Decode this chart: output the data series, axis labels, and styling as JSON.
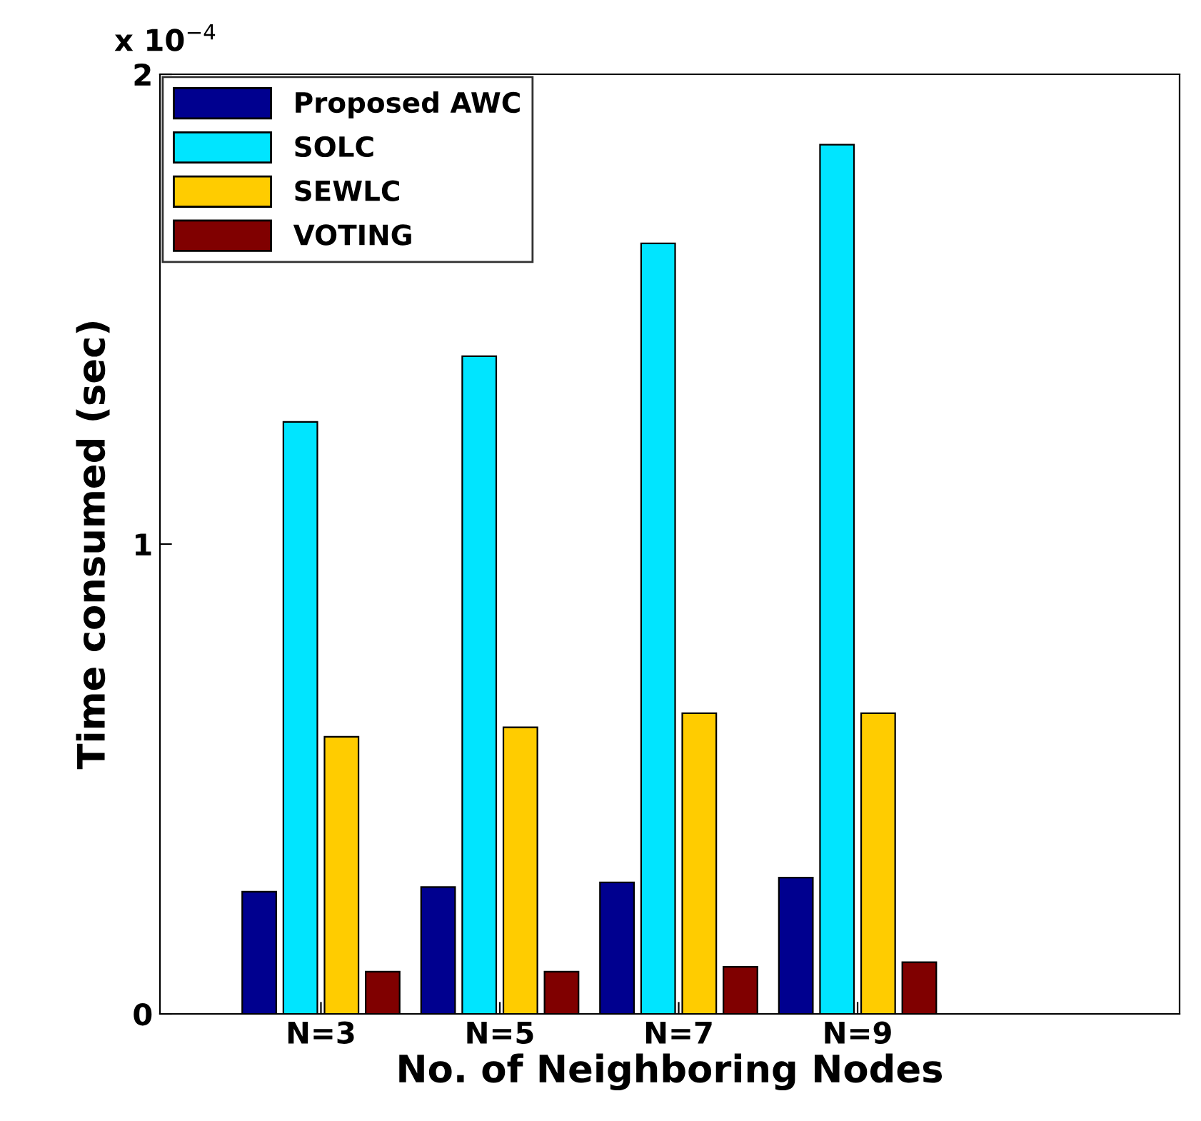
{
  "chart_data": {
    "type": "bar",
    "xlabel": "No. of Neighboring Nodes",
    "ylabel": "Time consumed (sec)",
    "categories": [
      "N=3",
      "N=5",
      "N=7",
      "N=9"
    ],
    "series": [
      {
        "name": "Proposed AWC",
        "color": "#00008f",
        "values": [
          0.26,
          0.27,
          0.28,
          0.29
        ]
      },
      {
        "name": "SOLC",
        "color": "#00e5ff",
        "values": [
          1.26,
          1.4,
          1.64,
          1.85
        ]
      },
      {
        "name": "SEWLC",
        "color": "#ffcc00",
        "values": [
          0.59,
          0.61,
          0.64,
          0.64
        ]
      },
      {
        "name": "VOTING",
        "color": "#800000",
        "values": [
          0.09,
          0.09,
          0.1,
          0.11
        ]
      }
    ],
    "ylim": [
      0,
      2
    ],
    "yticks": [
      0,
      1,
      2
    ],
    "annotations": [
      "x 10$^{−4}$"
    ],
    "legend": "top left",
    "grid": false
  }
}
